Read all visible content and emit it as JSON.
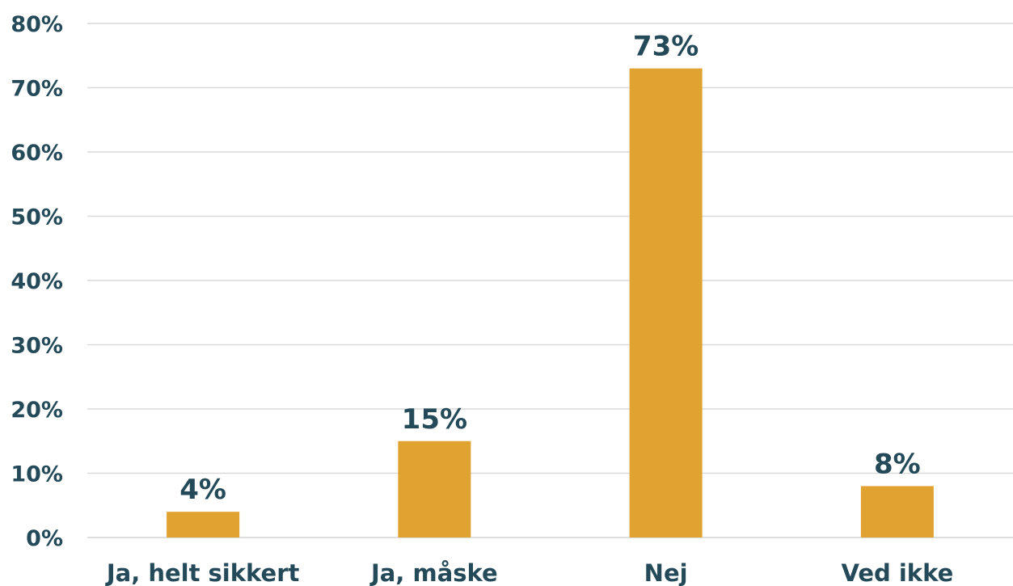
{
  "chart_data": {
    "type": "bar",
    "categories": [
      "Ja, helt sikkert",
      "Ja, måske",
      "Nej",
      "Ved ikke"
    ],
    "values": [
      4,
      15,
      73,
      8
    ],
    "data_labels": [
      "4%",
      "15%",
      "73%",
      "8%"
    ],
    "title": "",
    "xlabel": "",
    "ylabel": "",
    "ylim": [
      0,
      80
    ],
    "y_ticks": [
      0,
      10,
      20,
      30,
      40,
      50,
      60,
      70,
      80
    ],
    "y_tick_labels": [
      "0%",
      "10%",
      "20%",
      "30%",
      "40%",
      "50%",
      "60%",
      "70%",
      "80%"
    ],
    "grid": true,
    "legend": "none",
    "colors": {
      "bar": "#E0A332",
      "text": "#244A5A",
      "grid": "#D9D9D9"
    }
  }
}
